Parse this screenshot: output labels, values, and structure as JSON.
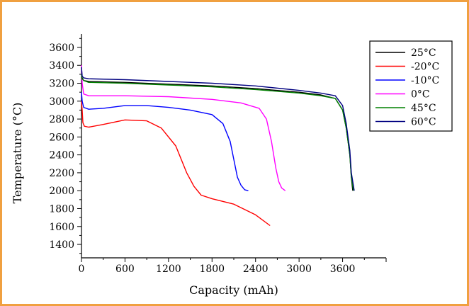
{
  "chart_data": {
    "type": "line",
    "xlabel": "Capacity (mAh)",
    "ylabel": "Temperature (°C)",
    "xlim": [
      0,
      4200
    ],
    "ylim": [
      1250,
      3750
    ],
    "x_ticks": [
      0,
      600,
      1200,
      1800,
      2400,
      3000,
      3600
    ],
    "y_ticks": [
      1400,
      1600,
      1800,
      2000,
      2200,
      2400,
      2600,
      2800,
      3000,
      3200,
      3400,
      3600
    ],
    "grid": false,
    "legend_position": "top-right",
    "series": [
      {
        "name": "25°C",
        "color": "#000000",
        "x": [
          0,
          10,
          30,
          100,
          600,
          1200,
          1800,
          2400,
          3000,
          3300,
          3500,
          3600,
          3650,
          3700,
          3720,
          3740
        ],
        "y": [
          3330,
          3260,
          3230,
          3220,
          3210,
          3190,
          3170,
          3140,
          3100,
          3070,
          3030,
          2900,
          2700,
          2400,
          2150,
          2000
        ]
      },
      {
        "name": "-20°C",
        "color": "#ff0000",
        "x": [
          0,
          10,
          20,
          40,
          100,
          300,
          600,
          900,
          1100,
          1300,
          1450,
          1550,
          1650,
          1800,
          2100,
          2400,
          2600
        ],
        "y": [
          3000,
          2900,
          2760,
          2720,
          2710,
          2740,
          2790,
          2780,
          2700,
          2500,
          2200,
          2050,
          1950,
          1910,
          1850,
          1730,
          1610
        ]
      },
      {
        "name": "-10°C",
        "color": "#0000ff",
        "x": [
          0,
          10,
          30,
          100,
          300,
          600,
          900,
          1200,
          1500,
          1800,
          1950,
          2050,
          2100,
          2150,
          2200,
          2250,
          2300
        ],
        "y": [
          3100,
          3000,
          2930,
          2910,
          2920,
          2950,
          2950,
          2930,
          2900,
          2850,
          2750,
          2550,
          2350,
          2150,
          2060,
          2010,
          2000
        ]
      },
      {
        "name": "0°C",
        "color": "#ff00ff",
        "x": [
          0,
          10,
          30,
          100,
          600,
          1200,
          1800,
          2200,
          2450,
          2550,
          2620,
          2680,
          2720,
          2760,
          2810
        ],
        "y": [
          3400,
          3200,
          3080,
          3060,
          3060,
          3050,
          3020,
          2980,
          2920,
          2800,
          2550,
          2250,
          2100,
          2030,
          2000
        ]
      },
      {
        "name": "45°C",
        "color": "#008000",
        "x": [
          0,
          10,
          30,
          100,
          600,
          1200,
          1800,
          2400,
          3000,
          3300,
          3500,
          3600,
          3650,
          3700,
          3720,
          3750
        ],
        "y": [
          3300,
          3250,
          3230,
          3210,
          3200,
          3180,
          3160,
          3130,
          3090,
          3060,
          3030,
          2900,
          2700,
          2400,
          2150,
          2000
        ]
      },
      {
        "name": "60°C",
        "color": "#000080",
        "x": [
          0,
          10,
          30,
          100,
          600,
          1200,
          1800,
          2400,
          3000,
          3300,
          3500,
          3600,
          3650,
          3700,
          3720,
          3760
        ],
        "y": [
          3380,
          3280,
          3260,
          3250,
          3240,
          3220,
          3200,
          3170,
          3120,
          3090,
          3060,
          2950,
          2750,
          2450,
          2200,
          2000
        ]
      }
    ]
  }
}
